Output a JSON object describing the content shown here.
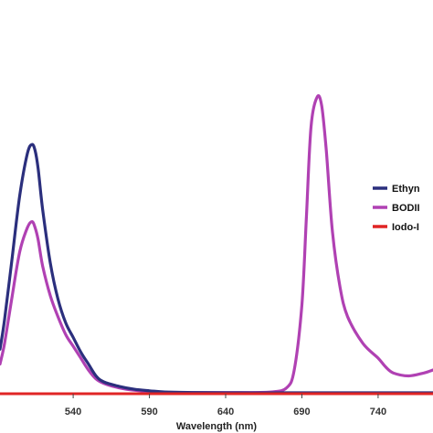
{
  "chart_data": {
    "type": "line",
    "title": "",
    "xlabel": "Wavelength (nm)",
    "ylabel": "",
    "xlim": [
      492,
      776
    ],
    "ylim": [
      0,
      1.05
    ],
    "x_ticks": [
      540,
      590,
      640,
      690,
      740
    ],
    "grid": false,
    "legend_position": "right",
    "series": [
      {
        "name": "Ethyn",
        "color": "#2b2f7d",
        "x": [
          492,
          495,
          500,
          505,
          510,
          513,
          515,
          517,
          520,
          525,
          530,
          535,
          540,
          545,
          550,
          555,
          560,
          570,
          580,
          590,
          600,
          620,
          650,
          680,
          700,
          730,
          760,
          776
        ],
        "y": [
          0.15,
          0.25,
          0.46,
          0.67,
          0.81,
          0.84,
          0.82,
          0.76,
          0.62,
          0.44,
          0.32,
          0.24,
          0.19,
          0.14,
          0.1,
          0.06,
          0.04,
          0.025,
          0.015,
          0.01,
          0.006,
          0.004,
          0.003,
          0.003,
          0.003,
          0.003,
          0.003,
          0.003
        ]
      },
      {
        "name": "BODII",
        "color": "#b041b3",
        "x": [
          492,
          495,
          500,
          505,
          510,
          513,
          515,
          517,
          520,
          525,
          530,
          535,
          540,
          545,
          550,
          555,
          560,
          570,
          580,
          590,
          600,
          620,
          650,
          670,
          680,
          685,
          690,
          693,
          696,
          700,
          703,
          706,
          710,
          715,
          720,
          730,
          740,
          745,
          750,
          760,
          770,
          776
        ],
        "y": [
          0.1,
          0.17,
          0.33,
          0.48,
          0.56,
          0.58,
          0.56,
          0.52,
          0.43,
          0.33,
          0.26,
          0.2,
          0.16,
          0.12,
          0.08,
          0.05,
          0.035,
          0.02,
          0.012,
          0.008,
          0.005,
          0.004,
          0.004,
          0.006,
          0.02,
          0.08,
          0.3,
          0.6,
          0.9,
          1.0,
          0.97,
          0.82,
          0.55,
          0.36,
          0.26,
          0.17,
          0.12,
          0.09,
          0.07,
          0.06,
          0.07,
          0.08
        ]
      },
      {
        "name": "Iodo-I",
        "color": "#e02424",
        "x": [
          492,
          776
        ],
        "y": [
          0.0,
          0.0
        ]
      }
    ]
  }
}
